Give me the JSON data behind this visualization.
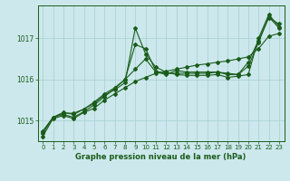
{
  "title": "Graphe pression niveau de la mer (hPa)",
  "bg_color": "#cce8ec",
  "line_color": "#1a5c1a",
  "grid_color": "#a8cdd0",
  "axis_color": "#1a5c1a",
  "xlim": [
    -0.5,
    23.5
  ],
  "ylim": [
    1014.5,
    1017.8
  ],
  "yticks": [
    1015,
    1016,
    1017
  ],
  "xticks": [
    0,
    1,
    2,
    3,
    4,
    5,
    6,
    7,
    8,
    9,
    10,
    11,
    12,
    13,
    14,
    15,
    16,
    17,
    18,
    19,
    20,
    21,
    22,
    23
  ],
  "series": [
    [
      1014.62,
      1015.05,
      1015.12,
      1015.05,
      1015.2,
      1015.3,
      1015.5,
      1015.65,
      1015.8,
      1015.95,
      1016.05,
      1016.15,
      1016.2,
      1016.25,
      1016.3,
      1016.35,
      1016.38,
      1016.42,
      1016.45,
      1016.5,
      1016.55,
      1016.75,
      1017.05,
      1017.12
    ],
    [
      1014.75,
      1015.08,
      1015.15,
      1015.08,
      1015.22,
      1015.38,
      1015.58,
      1015.78,
      1016.0,
      1016.85,
      1016.75,
      1016.2,
      1016.15,
      1016.15,
      1016.15,
      1016.15,
      1016.15,
      1016.18,
      1016.15,
      1016.12,
      1016.42,
      1016.95,
      1017.5,
      1017.35
    ],
    [
      1014.7,
      1015.08,
      1015.2,
      1015.15,
      1015.28,
      1015.42,
      1015.62,
      1015.75,
      1015.92,
      1017.25,
      1016.62,
      1016.3,
      1016.18,
      1016.12,
      1016.1,
      1016.1,
      1016.1,
      1016.12,
      1016.05,
      1016.08,
      1016.12,
      1017.0,
      1017.58,
      1017.28
    ],
    [
      1014.7,
      1015.08,
      1015.18,
      1015.18,
      1015.28,
      1015.45,
      1015.65,
      1015.8,
      1016.0,
      1016.25,
      1016.5,
      1016.18,
      1016.12,
      1016.22,
      1016.18,
      1016.18,
      1016.18,
      1016.18,
      1016.12,
      1016.12,
      1016.32,
      1016.9,
      1017.52,
      1017.25
    ]
  ]
}
